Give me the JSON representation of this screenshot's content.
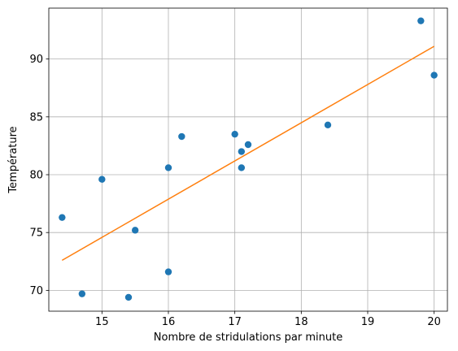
{
  "chart_data": {
    "type": "scatter",
    "title": "",
    "xlabel": "Nombre de stridulations par minute",
    "ylabel": "Température",
    "xlim": [
      14.2,
      20.2
    ],
    "ylim": [
      68.2,
      94.4
    ],
    "xticks": [
      15,
      16,
      17,
      18,
      19,
      20
    ],
    "yticks": [
      70,
      75,
      80,
      85,
      90
    ],
    "grid": true,
    "series": [
      {
        "kind": "scatter",
        "color": "#1f77b4",
        "points": [
          [
            14.4,
            76.3
          ],
          [
            14.7,
            69.7
          ],
          [
            15.0,
            79.6
          ],
          [
            15.4,
            69.4
          ],
          [
            15.5,
            75.2
          ],
          [
            16.0,
            80.6
          ],
          [
            16.0,
            71.6
          ],
          [
            16.2,
            83.3
          ],
          [
            17.0,
            83.5
          ],
          [
            17.1,
            82.0
          ],
          [
            17.1,
            80.6
          ],
          [
            17.2,
            82.6
          ],
          [
            18.4,
            84.3
          ],
          [
            19.8,
            93.3
          ],
          [
            20.0,
            88.6
          ]
        ]
      },
      {
        "kind": "line",
        "color": "#ff7f0e",
        "points": [
          [
            14.4,
            72.6
          ],
          [
            20.0,
            91.1
          ]
        ]
      }
    ]
  }
}
